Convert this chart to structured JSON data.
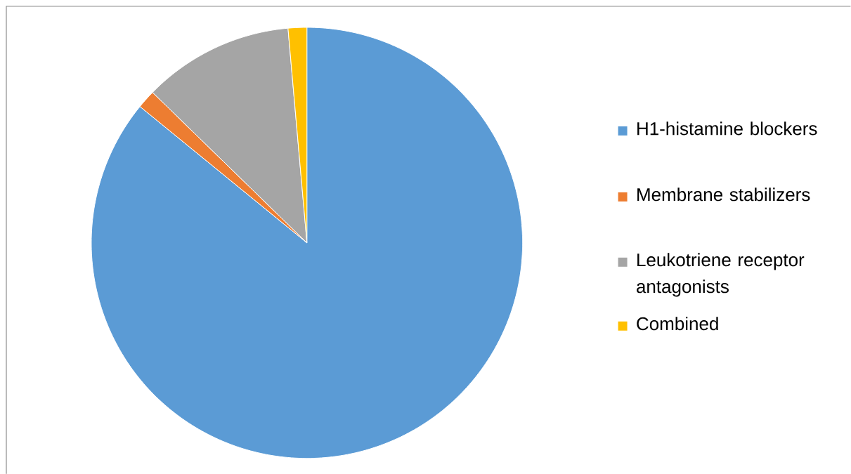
{
  "chart_data": {
    "type": "pie",
    "categories": [
      "H1-histamine blockers",
      "Membrane stabilizers",
      "Leukotriene receptor antagonists",
      "Combined"
    ],
    "values": [
      85.9,
      1.4,
      11.3,
      1.4
    ],
    "colors": [
      "#5b9bd5",
      "#ed7d31",
      "#a5a5a5",
      "#ffc000"
    ],
    "legend": "right"
  }
}
